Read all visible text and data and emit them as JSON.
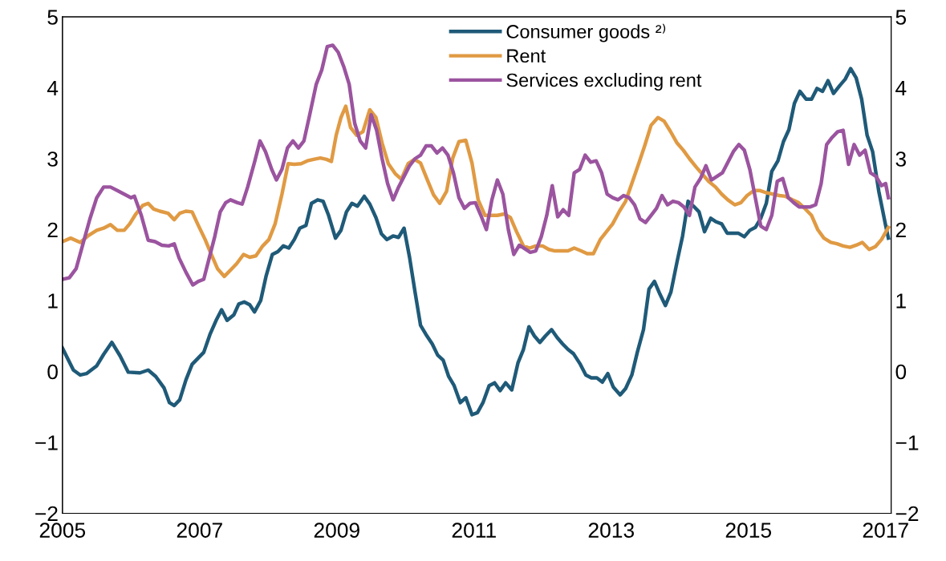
{
  "chart_data": {
    "type": "line",
    "xlim": [
      2005,
      2017.08
    ],
    "xticks": [
      2005,
      2007,
      2009,
      2011,
      2013,
      2015,
      2017
    ],
    "ylim": [
      -2,
      5
    ],
    "yticks": [
      {
        "value": -2,
        "label": "−2"
      },
      {
        "value": -1,
        "label": "−1"
      },
      0,
      1,
      2,
      3,
      4,
      5
    ],
    "y2lim": [
      -2,
      5
    ],
    "y2ticks": [
      {
        "value": -2,
        "label": "−2"
      },
      {
        "value": -1,
        "label": "−1"
      },
      0,
      1,
      2,
      3,
      4,
      5
    ],
    "grid": false,
    "legend": "top",
    "marker": "none",
    "line_style": "solid",
    "series": [
      {
        "name": "Consumer goods ²⁾",
        "color": "#1f5a78",
        "x": [
          2005.0,
          2005.16,
          2005.26,
          2005.35,
          2005.5,
          2005.6,
          2005.72,
          2005.84,
          2005.96,
          2006.13,
          2006.25,
          2006.36,
          2006.48,
          2006.56,
          2006.63,
          2006.71,
          2006.8,
          2006.89,
          2007.06,
          2007.15,
          2007.24,
          2007.32,
          2007.4,
          2007.5,
          2007.57,
          2007.65,
          2007.73,
          2007.8,
          2007.89,
          2007.97,
          2008.06,
          2008.14,
          2008.22,
          2008.3,
          2008.38,
          2008.46,
          2008.55,
          2008.63,
          2008.72,
          2008.8,
          2008.88,
          2008.98,
          2009.06,
          2009.14,
          2009.22,
          2009.3,
          2009.4,
          2009.48,
          2009.57,
          2009.65,
          2009.73,
          2009.82,
          2009.9,
          2009.98,
          2010.06,
          2010.14,
          2010.22,
          2010.3,
          2010.39,
          2010.47,
          2010.55,
          2010.63,
          2010.71,
          2010.8,
          2010.88,
          2010.97,
          2011.05,
          2011.13,
          2011.22,
          2011.3,
          2011.38,
          2011.46,
          2011.55,
          2011.64,
          2011.72,
          2011.8,
          2011.88,
          2011.96,
          2012.04,
          2012.13,
          2012.21,
          2012.29,
          2012.37,
          2012.45,
          2012.55,
          2012.63,
          2012.71,
          2012.79,
          2012.87,
          2012.95,
          2013.03,
          2013.13,
          2013.21,
          2013.3,
          2013.38,
          2013.47,
          2013.55,
          2013.63,
          2013.71,
          2013.79,
          2013.87,
          2013.96,
          2014.04,
          2014.12,
          2014.2,
          2014.28,
          2014.36,
          2014.45,
          2014.53,
          2014.61,
          2014.69,
          2014.77,
          2014.85,
          2014.94,
          2015.02,
          2015.1,
          2015.18,
          2015.26,
          2015.34,
          2015.43,
          2015.51,
          2015.59,
          2015.67,
          2015.75,
          2015.84,
          2015.92,
          2016.0,
          2016.08,
          2016.16,
          2016.24,
          2016.33,
          2016.41,
          2016.49,
          2016.57,
          2016.65,
          2016.73,
          2016.81,
          2016.9,
          2017.0,
          2017.04
        ],
        "values": [
          0.33,
          0.02,
          -0.05,
          -0.03,
          0.08,
          0.24,
          0.41,
          0.22,
          -0.01,
          -0.02,
          0.02,
          -0.07,
          -0.23,
          -0.44,
          -0.48,
          -0.4,
          -0.12,
          0.1,
          0.27,
          0.52,
          0.72,
          0.87,
          0.72,
          0.8,
          0.95,
          0.98,
          0.94,
          0.84,
          1.0,
          1.35,
          1.65,
          1.69,
          1.77,
          1.74,
          1.86,
          2.02,
          2.06,
          2.37,
          2.42,
          2.4,
          2.2,
          1.88,
          1.99,
          2.25,
          2.37,
          2.33,
          2.47,
          2.36,
          2.17,
          1.94,
          1.86,
          1.91,
          1.89,
          2.02,
          1.61,
          1.12,
          0.65,
          0.52,
          0.39,
          0.23,
          0.16,
          -0.07,
          -0.2,
          -0.44,
          -0.37,
          -0.61,
          -0.58,
          -0.44,
          -0.2,
          -0.16,
          -0.27,
          -0.16,
          -0.26,
          0.12,
          0.31,
          0.63,
          0.5,
          0.41,
          0.5,
          0.59,
          0.48,
          0.39,
          0.31,
          0.25,
          0.1,
          -0.05,
          -0.09,
          -0.09,
          -0.15,
          -0.03,
          -0.22,
          -0.33,
          -0.24,
          -0.05,
          0.27,
          0.59,
          1.16,
          1.27,
          1.09,
          0.93,
          1.12,
          1.55,
          1.91,
          2.4,
          2.33,
          2.25,
          1.97,
          2.16,
          2.11,
          2.08,
          1.95,
          1.95,
          1.95,
          1.9,
          1.99,
          2.03,
          2.16,
          2.37,
          2.82,
          2.97,
          3.24,
          3.41,
          3.78,
          3.95,
          3.84,
          3.84,
          3.99,
          3.95,
          4.1,
          3.92,
          4.03,
          4.12,
          4.27,
          4.14,
          3.84,
          3.33,
          3.1,
          2.54,
          2.06,
          1.88
        ]
      },
      {
        "name": "Rent",
        "color": "#e09a43",
        "x": [
          2005.0,
          2005.12,
          2005.26,
          2005.37,
          2005.5,
          2005.6,
          2005.7,
          2005.8,
          2005.9,
          2005.98,
          2006.07,
          2006.17,
          2006.25,
          2006.33,
          2006.42,
          2006.54,
          2006.63,
          2006.71,
          2006.8,
          2006.89,
          2006.98,
          2007.08,
          2007.17,
          2007.26,
          2007.36,
          2007.45,
          2007.54,
          2007.64,
          2007.73,
          2007.82,
          2007.92,
          2008.01,
          2008.1,
          2008.2,
          2008.29,
          2008.38,
          2008.48,
          2008.57,
          2008.66,
          2008.76,
          2008.85,
          2008.92,
          2008.99,
          2009.06,
          2009.13,
          2009.2,
          2009.29,
          2009.38,
          2009.48,
          2009.57,
          2009.66,
          2009.75,
          2009.85,
          2009.94,
          2010.04,
          2010.13,
          2010.22,
          2010.32,
          2010.41,
          2010.5,
          2010.6,
          2010.69,
          2010.78,
          2010.88,
          2010.97,
          2011.06,
          2011.16,
          2011.25,
          2011.34,
          2011.44,
          2011.53,
          2011.62,
          2011.72,
          2011.81,
          2011.9,
          2012.0,
          2012.09,
          2012.18,
          2012.28,
          2012.37,
          2012.46,
          2012.56,
          2012.65,
          2012.74,
          2012.84,
          2012.93,
          2013.02,
          2013.12,
          2013.21,
          2013.3,
          2013.4,
          2013.49,
          2013.58,
          2013.68,
          2013.77,
          2013.86,
          2013.96,
          2014.05,
          2014.14,
          2014.24,
          2014.33,
          2014.42,
          2014.52,
          2014.61,
          2014.7,
          2014.8,
          2014.89,
          2014.98,
          2015.08,
          2015.17,
          2015.26,
          2015.36,
          2015.45,
          2015.54,
          2015.64,
          2015.73,
          2015.82,
          2015.92,
          2016.01,
          2016.1,
          2016.2,
          2016.29,
          2016.38,
          2016.48,
          2016.57,
          2016.66,
          2016.76,
          2016.85,
          2016.94,
          2017.04
        ],
        "values": [
          1.83,
          1.88,
          1.82,
          1.91,
          1.99,
          2.02,
          2.07,
          1.99,
          1.99,
          2.08,
          2.22,
          2.34,
          2.37,
          2.29,
          2.26,
          2.23,
          2.14,
          2.23,
          2.26,
          2.25,
          2.06,
          1.86,
          1.65,
          1.45,
          1.34,
          1.43,
          1.52,
          1.65,
          1.61,
          1.63,
          1.77,
          1.86,
          2.08,
          2.5,
          2.93,
          2.92,
          2.93,
          2.97,
          2.99,
          3.01,
          2.99,
          2.96,
          3.33,
          3.58,
          3.74,
          3.44,
          3.33,
          3.38,
          3.69,
          3.58,
          3.22,
          2.93,
          2.79,
          2.71,
          2.93,
          2.99,
          2.94,
          2.7,
          2.49,
          2.37,
          2.54,
          3.01,
          3.24,
          3.26,
          2.94,
          2.42,
          2.2,
          2.2,
          2.2,
          2.22,
          2.17,
          1.97,
          1.77,
          1.74,
          1.77,
          1.77,
          1.72,
          1.7,
          1.7,
          1.7,
          1.74,
          1.7,
          1.66,
          1.66,
          1.86,
          1.97,
          2.08,
          2.26,
          2.4,
          2.65,
          2.93,
          3.19,
          3.47,
          3.58,
          3.53,
          3.39,
          3.22,
          3.12,
          3.0,
          2.88,
          2.78,
          2.68,
          2.6,
          2.5,
          2.42,
          2.35,
          2.38,
          2.48,
          2.55,
          2.55,
          2.52,
          2.5,
          2.48,
          2.47,
          2.42,
          2.38,
          2.3,
          2.2,
          2.0,
          1.88,
          1.82,
          1.8,
          1.77,
          1.75,
          1.78,
          1.82,
          1.72,
          1.76,
          1.86,
          2.03
        ]
      },
      {
        "name": "Services excluding rent",
        "color": "#9b549f",
        "x": [
          2005.0,
          2005.1,
          2005.2,
          2005.3,
          2005.4,
          2005.5,
          2005.6,
          2005.7,
          2005.8,
          2005.9,
          2006.0,
          2006.05,
          2006.15,
          2006.25,
          2006.35,
          2006.45,
          2006.55,
          2006.63,
          2006.7,
          2006.8,
          2006.9,
          2006.98,
          2007.06,
          2007.14,
          2007.22,
          2007.3,
          2007.38,
          2007.45,
          2007.55,
          2007.62,
          2007.7,
          2007.8,
          2007.88,
          2007.96,
          2008.05,
          2008.12,
          2008.2,
          2008.28,
          2008.36,
          2008.44,
          2008.52,
          2008.6,
          2008.7,
          2008.78,
          2008.86,
          2008.94,
          2009.02,
          2009.1,
          2009.18,
          2009.26,
          2009.34,
          2009.42,
          2009.5,
          2009.58,
          2009.66,
          2009.74,
          2009.82,
          2009.9,
          2009.98,
          2010.06,
          2010.14,
          2010.22,
          2010.3,
          2010.38,
          2010.46,
          2010.54,
          2010.62,
          2010.7,
          2010.78,
          2010.86,
          2010.94,
          2011.02,
          2011.1,
          2011.18,
          2011.26,
          2011.34,
          2011.42,
          2011.5,
          2011.58,
          2011.66,
          2011.74,
          2011.82,
          2011.9,
          2011.98,
          2012.06,
          2012.14,
          2012.22,
          2012.3,
          2012.38,
          2012.46,
          2012.54,
          2012.62,
          2012.7,
          2012.78,
          2012.86,
          2012.94,
          2013.02,
          2013.1,
          2013.18,
          2013.26,
          2013.34,
          2013.42,
          2013.5,
          2013.58,
          2013.66,
          2013.74,
          2013.82,
          2013.9,
          2013.98,
          2014.06,
          2014.14,
          2014.22,
          2014.3,
          2014.38,
          2014.46,
          2014.54,
          2014.62,
          2014.7,
          2014.78,
          2014.86,
          2014.94,
          2015.02,
          2015.1,
          2015.18,
          2015.26,
          2015.34,
          2015.42,
          2015.5,
          2015.58,
          2015.66,
          2015.74,
          2015.82,
          2015.9,
          2015.98,
          2016.06,
          2016.14,
          2016.22,
          2016.3,
          2016.38,
          2016.46,
          2016.54,
          2016.62,
          2016.7,
          2016.78,
          2016.86,
          2016.94,
          2017.0,
          2017.04
        ],
        "values": [
          1.3,
          1.32,
          1.45,
          1.8,
          2.15,
          2.45,
          2.6,
          2.6,
          2.55,
          2.5,
          2.45,
          2.47,
          2.2,
          1.85,
          1.83,
          1.78,
          1.77,
          1.8,
          1.6,
          1.4,
          1.22,
          1.27,
          1.3,
          1.6,
          1.9,
          2.25,
          2.38,
          2.42,
          2.38,
          2.36,
          2.6,
          2.95,
          3.25,
          3.1,
          2.85,
          2.7,
          2.85,
          3.15,
          3.25,
          3.15,
          3.25,
          3.6,
          4.05,
          4.25,
          4.58,
          4.6,
          4.5,
          4.3,
          4.05,
          3.5,
          3.25,
          3.15,
          3.62,
          3.4,
          3.0,
          2.65,
          2.42,
          2.6,
          2.75,
          2.9,
          3.0,
          3.05,
          3.18,
          3.18,
          3.08,
          3.15,
          3.05,
          2.8,
          2.45,
          2.3,
          2.37,
          2.38,
          2.2,
          2.0,
          2.42,
          2.7,
          2.5,
          2.0,
          1.65,
          1.78,
          1.73,
          1.68,
          1.7,
          1.9,
          2.2,
          2.62,
          2.18,
          2.28,
          2.2,
          2.8,
          2.85,
          3.05,
          2.95,
          2.97,
          2.8,
          2.5,
          2.45,
          2.42,
          2.48,
          2.45,
          2.35,
          2.15,
          2.1,
          2.2,
          2.3,
          2.48,
          2.35,
          2.4,
          2.38,
          2.32,
          2.2,
          2.6,
          2.72,
          2.9,
          2.7,
          2.75,
          2.8,
          2.95,
          3.1,
          3.2,
          3.12,
          2.85,
          2.45,
          2.05,
          2.0,
          2.2,
          2.68,
          2.72,
          2.45,
          2.38,
          2.32,
          2.32,
          2.32,
          2.35,
          2.65,
          3.2,
          3.3,
          3.38,
          3.4,
          2.92,
          3.2,
          3.05,
          3.12,
          2.8,
          2.75,
          2.62,
          2.65,
          2.45
        ]
      }
    ]
  }
}
